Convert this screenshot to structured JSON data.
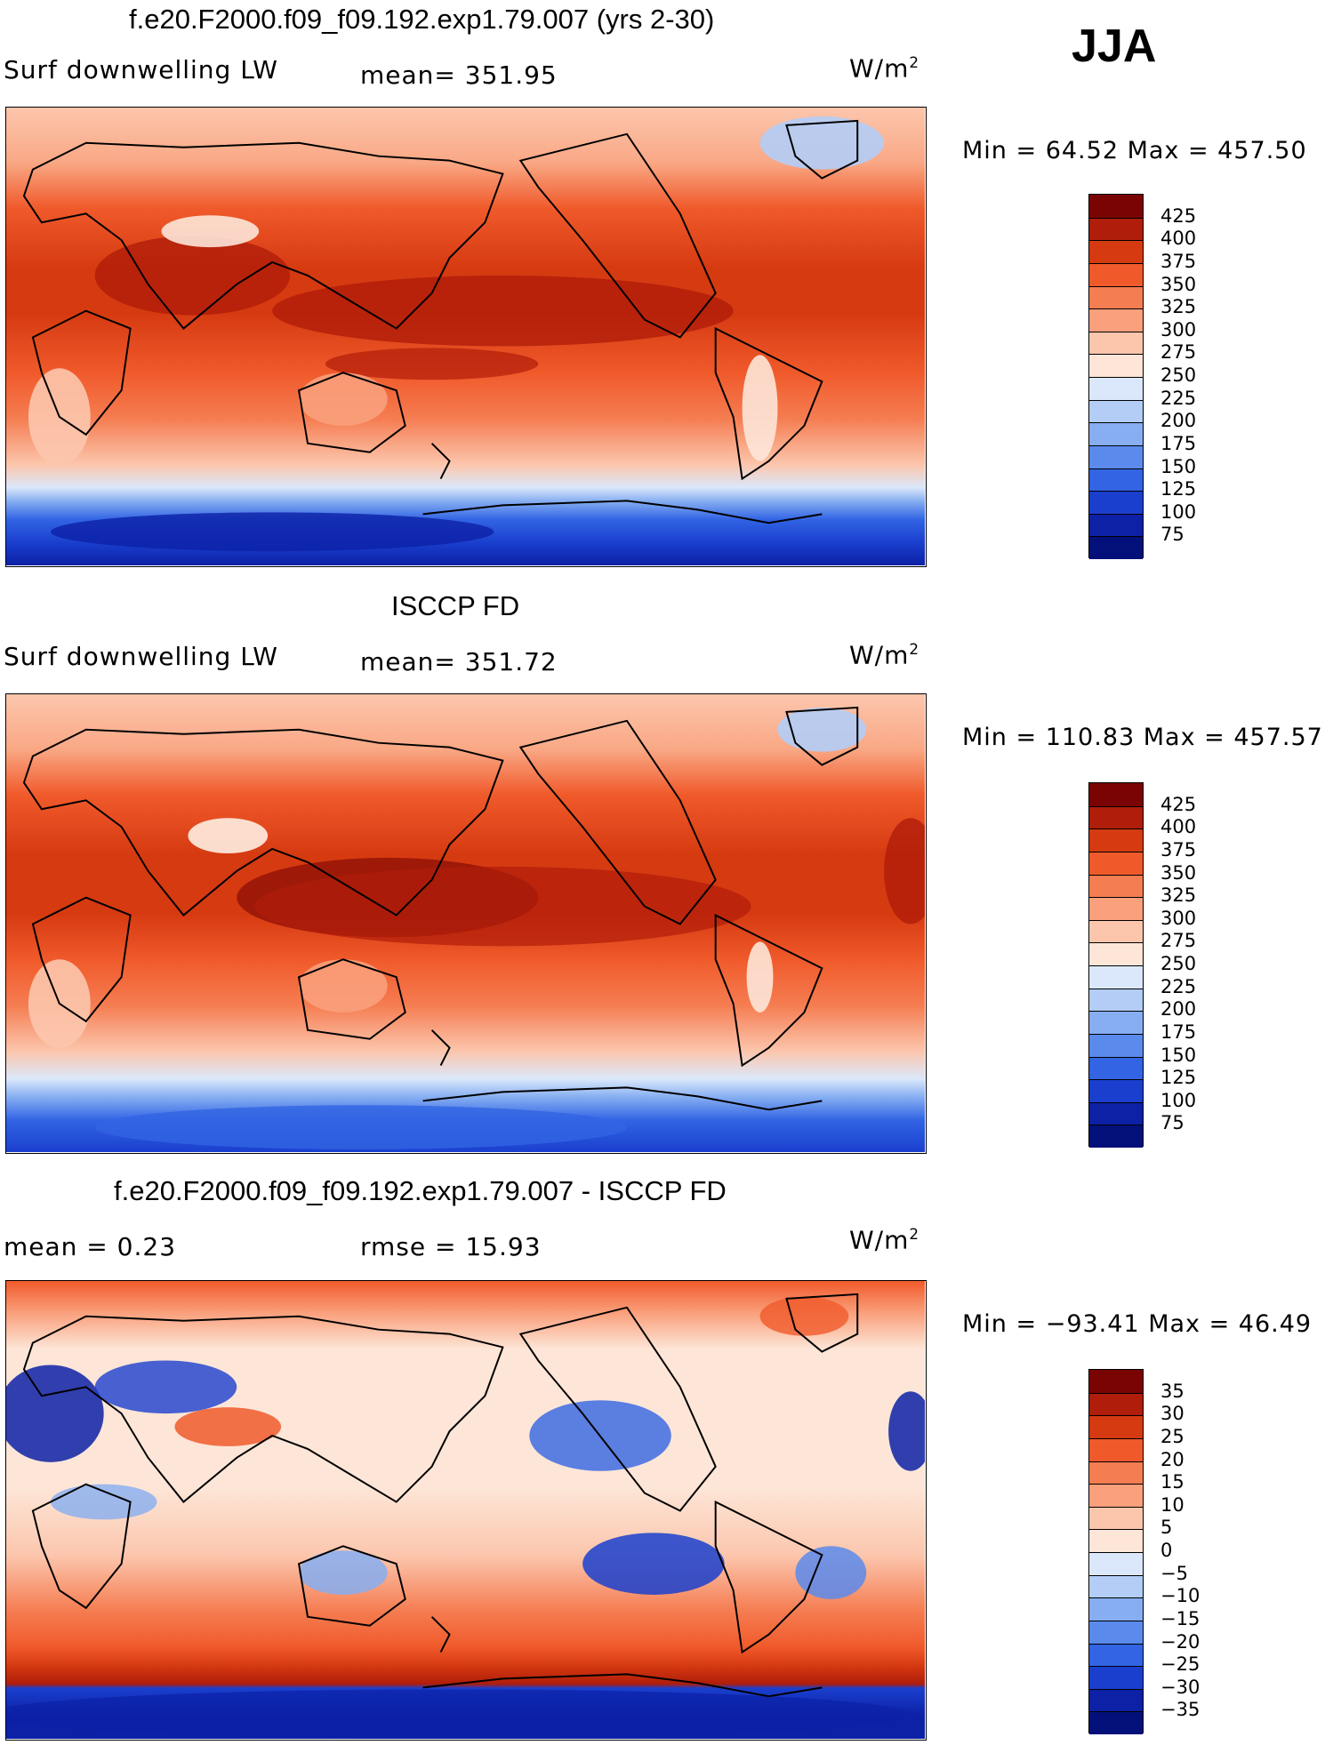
{
  "season": "JJA",
  "panels": [
    {
      "title": "f.e20.F2000.f09_f09.192.exp1.79.007 (yrs 2-30)",
      "variable": "Surf downwelling LW",
      "left_stat": "",
      "stat_text": "mean= 351.95",
      "units_base": "W/m",
      "units_exp": "2",
      "minmax": "Min =   64.52 Max = 457.50"
    },
    {
      "title": "ISCCP FD",
      "variable": "Surf downwelling LW",
      "left_stat": "",
      "stat_text": "mean= 351.72",
      "units_base": "W/m",
      "units_exp": "2",
      "minmax": "Min = 110.83 Max = 457.57"
    },
    {
      "title": "f.e20.F2000.f09_f09.192.exp1.79.007 - ISCCP FD",
      "variable": "",
      "left_stat": "mean =    0.23",
      "stat_text": "rmse =   15.93",
      "units_base": "W/m",
      "units_exp": "2",
      "minmax": "Min = −93.41 Max =  46.49"
    }
  ],
  "colorbar_abs": {
    "labels": [
      "425",
      "400",
      "375",
      "350",
      "325",
      "300",
      "275",
      "250",
      "225",
      "200",
      "175",
      "150",
      "125",
      "100",
      "75"
    ],
    "colors": [
      "#7a0403",
      "#b01d0a",
      "#d63a11",
      "#f05a2b",
      "#f57d52",
      "#faa07c",
      "#fcc6ad",
      "#fde6d8",
      "#dbe8fb",
      "#b3cdf7",
      "#86aef1",
      "#5a8aec",
      "#3264e4",
      "#1a3fce",
      "#0c21a6",
      "#04107a"
    ]
  },
  "colorbar_diff": {
    "labels": [
      "35",
      "30",
      "25",
      "20",
      "15",
      "10",
      "5",
      "0",
      "−5",
      "−10",
      "−15",
      "−20",
      "−25",
      "−30",
      "−35"
    ],
    "colors": [
      "#7a0403",
      "#b01d0a",
      "#d63a11",
      "#f05a2b",
      "#f57d52",
      "#faa07c",
      "#fcc6ad",
      "#fde6d8",
      "#dbe8fb",
      "#b3cdf7",
      "#86aef1",
      "#5a8aec",
      "#3264e4",
      "#1a3fce",
      "#0c21a6",
      "#04107a"
    ]
  }
}
